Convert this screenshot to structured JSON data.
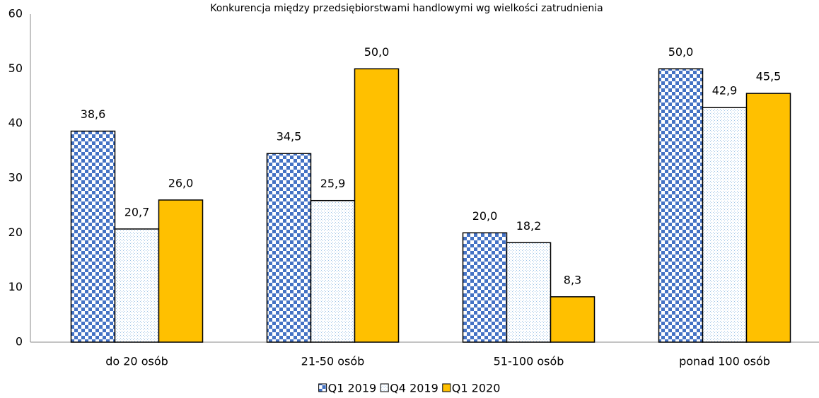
{
  "chart_data": {
    "type": "bar",
    "title": "Konkurencja między przedsiębiorstwami handlowymi wg wielkości zatrudnienia",
    "categories": [
      "do 20 osób",
      "21-50 osób",
      "51-100 osób",
      "ponad 100 osób"
    ],
    "series": [
      {
        "name": "Q1 2019",
        "color": "#4472c4",
        "pattern": "checker",
        "values": [
          38.6,
          34.5,
          20.0,
          50.0
        ],
        "value_labels": [
          "38,6",
          "34,5",
          "20,0",
          "50,0"
        ]
      },
      {
        "name": "Q4 2019",
        "color": "#9dc3e6",
        "pattern": "dots",
        "values": [
          20.7,
          25.9,
          18.2,
          42.9
        ],
        "value_labels": [
          "20,7",
          "25,9",
          "18,2",
          "42,9"
        ]
      },
      {
        "name": "Q1 2020",
        "color": "#ffc000",
        "pattern": "solid",
        "values": [
          26.0,
          50.0,
          8.3,
          45.5
        ],
        "value_labels": [
          "26,0",
          "50,0",
          "8,3",
          "45,5"
        ]
      }
    ],
    "ylim": [
      0,
      60
    ],
    "yticks": [
      0,
      10,
      20,
      30,
      40,
      50,
      60
    ],
    "grid": false,
    "legend": "bottom"
  }
}
